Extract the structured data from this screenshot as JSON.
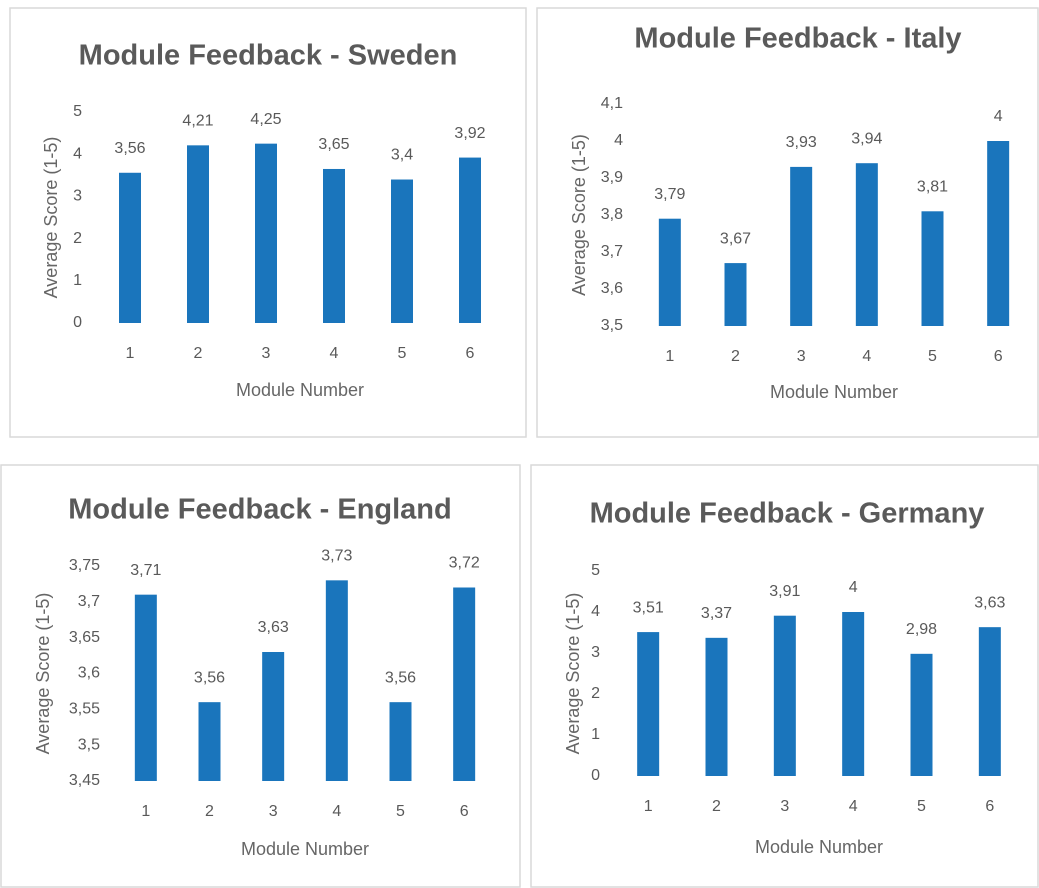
{
  "chart_data": [
    {
      "type": "bar",
      "title": "Module Feedback - Sweden",
      "x_label": "Module Number",
      "y_label": "Average Score (1-5)",
      "categories": [
        "1",
        "2",
        "3",
        "4",
        "5",
        "6"
      ],
      "values": [
        3.56,
        4.21,
        4.25,
        3.65,
        3.4,
        3.92
      ],
      "value_labels": [
        "3,56",
        "4,21",
        "4,25",
        "3,65",
        "3,4",
        "3,92"
      ],
      "color": "#1a75bc",
      "ylim": [
        0,
        5
      ],
      "yticks": [
        0,
        1,
        2,
        3,
        4,
        5
      ],
      "grid": false
    },
    {
      "type": "bar",
      "title": "Module Feedback - Italy",
      "x_label": "Module Number",
      "y_label": "Average Score (1-5)",
      "categories": [
        "1",
        "2",
        "3",
        "4",
        "5",
        "6"
      ],
      "values": [
        3.79,
        3.67,
        3.93,
        3.94,
        3.81,
        4
      ],
      "value_labels": [
        "3,79",
        "3,67",
        "3,93",
        "3,94",
        "3,81",
        "4"
      ],
      "color": "#1a75bc",
      "ylim": [
        3.5,
        4.1
      ],
      "yticks": [
        {
          "value": 3.5,
          "label": "3,5"
        },
        {
          "value": 3.6,
          "label": "3,6"
        },
        {
          "value": 3.7,
          "label": "3,7"
        },
        {
          "value": 3.8,
          "label": "3,8"
        },
        {
          "value": 3.9,
          "label": "3,9"
        },
        4,
        {
          "value": 4.1,
          "label": "4,1"
        }
      ],
      "grid": false
    },
    {
      "type": "bar",
      "title": "Module Feedback - England",
      "x_label": "Module Number",
      "y_label": "Average Score (1-5)",
      "categories": [
        "1",
        "2",
        "3",
        "4",
        "5",
        "6"
      ],
      "values": [
        3.71,
        3.56,
        3.63,
        3.73,
        3.56,
        3.72
      ],
      "value_labels": [
        "3,71",
        "3,56",
        "3,63",
        "3,73",
        "3,56",
        "3,72"
      ],
      "color": "#1a75bc",
      "ylim": [
        3.45,
        3.75
      ],
      "yticks": [
        {
          "value": 3.45,
          "label": "3,45"
        },
        {
          "value": 3.5,
          "label": "3,5"
        },
        {
          "value": 3.55,
          "label": "3,55"
        },
        {
          "value": 3.6,
          "label": "3,6"
        },
        {
          "value": 3.65,
          "label": "3,65"
        },
        {
          "value": 3.7,
          "label": "3,7"
        },
        {
          "value": 3.75,
          "label": "3,75"
        }
      ],
      "grid": false
    },
    {
      "type": "bar",
      "title": "Module Feedback - Germany",
      "x_label": "Module Number",
      "y_label": "Average Score (1-5)",
      "categories": [
        "1",
        "2",
        "3",
        "4",
        "5",
        "6"
      ],
      "values": [
        3.51,
        3.37,
        3.91,
        4,
        2.98,
        3.63
      ],
      "value_labels": [
        "3,51",
        "3,37",
        "3,91",
        "4",
        "2,98",
        "3,63"
      ],
      "color": "#1a75bc",
      "ylim": [
        0,
        5
      ],
      "yticks": [
        0,
        1,
        2,
        3,
        4,
        5
      ],
      "grid": false
    }
  ]
}
